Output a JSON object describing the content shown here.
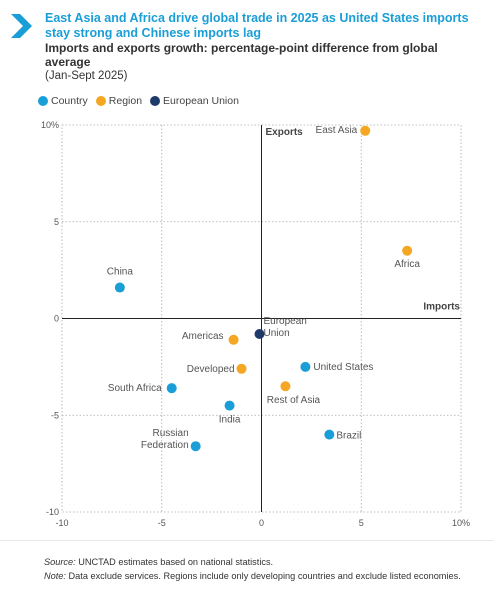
{
  "header": {
    "title": "East Asia and Africa drive global trade in 2025 as United States imports stay strong and Chinese imports lag",
    "subtitle": "Imports and exports growth: percentage-point difference from global average",
    "period": "(Jan-Sept 2025)"
  },
  "legend": [
    {
      "label": "Country",
      "color": "#1a9ed8"
    },
    {
      "label": "Region",
      "color": "#f5a623"
    },
    {
      "label": "European Union",
      "color": "#1d3a6b"
    }
  ],
  "colors": {
    "accent": "#1a9ed8",
    "country": "#1a9ed8",
    "region": "#f5a623",
    "eu": "#1d3a6b"
  },
  "chart_data": {
    "type": "scatter",
    "xlabel": "Imports",
    "ylabel": "Exports",
    "xlim": [
      -10,
      10
    ],
    "ylim": [
      -10,
      10
    ],
    "x_ticks": [
      "-10",
      "-5",
      "0",
      "5",
      "10%"
    ],
    "y_ticks": [
      "10%",
      "5",
      "0",
      "-5",
      "-10"
    ],
    "grid": "dotted",
    "legend_position": "top-left",
    "points": [
      {
        "label": "East Asia",
        "type": "Region",
        "x": 5.2,
        "y": 9.7
      },
      {
        "label": "Africa",
        "type": "Region",
        "x": 7.3,
        "y": 3.5
      },
      {
        "label": "China",
        "type": "Country",
        "x": -7.1,
        "y": 1.6
      },
      {
        "label": "Americas",
        "type": "Region",
        "x": -1.4,
        "y": -1.1
      },
      {
        "label": "European Union",
        "type": "European Union",
        "x": -0.1,
        "y": -0.8
      },
      {
        "label": "Developed",
        "type": "Region",
        "x": -1.0,
        "y": -2.6
      },
      {
        "label": "United States",
        "type": "Country",
        "x": 2.2,
        "y": -2.5
      },
      {
        "label": "South Africa",
        "type": "Country",
        "x": -4.5,
        "y": -3.6
      },
      {
        "label": "Rest of Asia",
        "type": "Region",
        "x": 1.2,
        "y": -3.5
      },
      {
        "label": "India",
        "type": "Country",
        "x": -1.6,
        "y": -4.5
      },
      {
        "label": "Brazil",
        "type": "Country",
        "x": 3.4,
        "y": -6.0
      },
      {
        "label": "Russian Federation",
        "type": "Country",
        "x": -3.3,
        "y": -6.6
      }
    ]
  },
  "footer": {
    "source_label": "Source:",
    "source_text": " UNCTAD estimates based on national statistics.",
    "note_label": "Note:",
    "note_text": " Data exclude services. Regions include only developing countries and exclude listed economies."
  }
}
